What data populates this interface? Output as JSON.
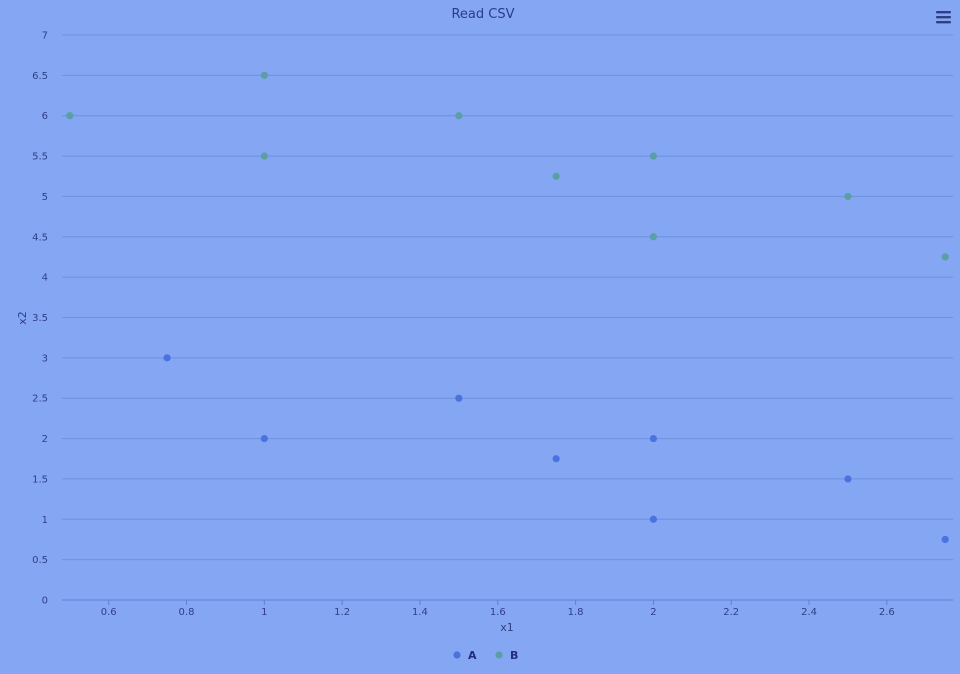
{
  "chart_data": {
    "type": "scatter",
    "title": "Read CSV",
    "xlabel": "x1",
    "ylabel": "x2",
    "xlim": [
      0.48,
      2.77
    ],
    "ylim": [
      0,
      7
    ],
    "x_ticks": [
      "0.6",
      "0.8",
      "1",
      "1.2",
      "1.4",
      "1.6",
      "1.8",
      "2",
      "2.2",
      "2.4",
      "2.6"
    ],
    "y_ticks": [
      "0",
      "0.5",
      "1",
      "1.5",
      "2",
      "2.5",
      "3",
      "3.5",
      "4",
      "4.5",
      "5",
      "5.5",
      "6",
      "6.5",
      "7"
    ],
    "grid": "horizontal",
    "legend_position": "bottom-center",
    "series": [
      {
        "name": "A",
        "color": "#4b73e0",
        "points": [
          {
            "x": 0.75,
            "y": 3
          },
          {
            "x": 1.0,
            "y": 2
          },
          {
            "x": 1.5,
            "y": 2.5
          },
          {
            "x": 1.75,
            "y": 1.75
          },
          {
            "x": 2.0,
            "y": 2
          },
          {
            "x": 2.0,
            "y": 1
          },
          {
            "x": 2.5,
            "y": 1.5
          },
          {
            "x": 2.75,
            "y": 0.75
          }
        ]
      },
      {
        "name": "B",
        "color": "#5a9fa3",
        "points": [
          {
            "x": 0.5,
            "y": 6
          },
          {
            "x": 1.0,
            "y": 6.5
          },
          {
            "x": 1.0,
            "y": 5.5
          },
          {
            "x": 1.5,
            "y": 6
          },
          {
            "x": 1.75,
            "y": 5.25
          },
          {
            "x": 2.0,
            "y": 5.5
          },
          {
            "x": 2.0,
            "y": 4.5
          },
          {
            "x": 2.5,
            "y": 5
          },
          {
            "x": 2.75,
            "y": 4.25
          }
        ]
      }
    ]
  },
  "toolbar": {
    "menu_icon": "hamburger-menu-icon"
  }
}
